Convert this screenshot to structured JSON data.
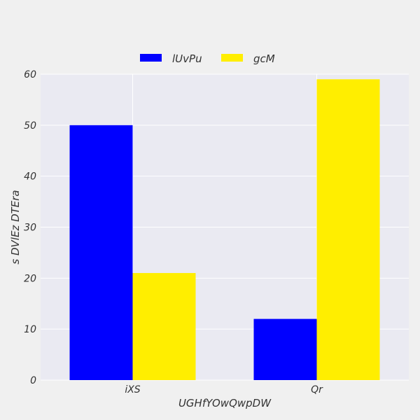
{
  "chart_data": {
    "type": "bar",
    "categories": [
      "iXS",
      "Qr"
    ],
    "series": [
      {
        "name": "lUvPu",
        "values": [
          50,
          12
        ],
        "color": "#0000ff"
      },
      {
        "name": "gcM",
        "values": [
          21,
          59
        ],
        "color": "#ffee00"
      }
    ],
    "xlabel": "UGHfYOwQwpDW",
    "ylabel": "s DVlEz DTEra",
    "ylim": [
      0,
      60
    ],
    "yticks": [
      0,
      10,
      20,
      30,
      40,
      50,
      60
    ],
    "grid": true,
    "legend_position": "top-center",
    "plot_background": "#eaeaf2",
    "page_background": "#f0f0f0"
  }
}
